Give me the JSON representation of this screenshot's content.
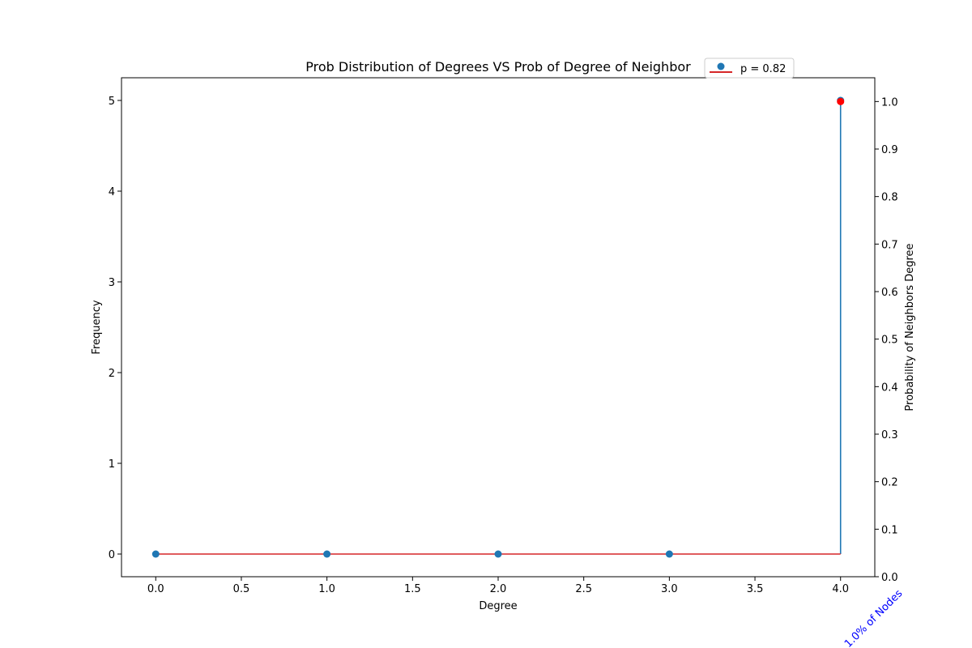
{
  "chart_data": {
    "type": "stem",
    "title": "Prob Distribution of Degrees VS Prob of Degree of Neighbor",
    "xlabel": "Degree",
    "ylabel_left": "Frequency",
    "ylabel_right": "Probability of Neighbors Degree",
    "xlim": [
      -0.2,
      4.2
    ],
    "ylim_left": [
      -0.25,
      5.25
    ],
    "ylim_right": [
      0,
      1.05
    ],
    "x_ticks": [
      "0.0",
      "0.5",
      "1.0",
      "1.5",
      "2.0",
      "2.5",
      "3.0",
      "3.5",
      "4.0"
    ],
    "x_tick_values": [
      0,
      0.5,
      1,
      1.5,
      2,
      2.5,
      3,
      3.5,
      4
    ],
    "y_left_ticks": [
      "0",
      "1",
      "2",
      "3",
      "4",
      "5"
    ],
    "y_left_tick_values": [
      0,
      1,
      2,
      3,
      4,
      5
    ],
    "y_right_ticks": [
      "0.0",
      "0.1",
      "0.2",
      "0.3",
      "0.4",
      "0.5",
      "0.6",
      "0.7",
      "0.8",
      "0.9",
      "1.0"
    ],
    "y_right_tick_values": [
      0,
      0.1,
      0.2,
      0.3,
      0.4,
      0.5,
      0.6,
      0.7,
      0.8,
      0.9,
      1.0
    ],
    "series": [
      {
        "name": "p = 0.82",
        "axis": "left",
        "style": "stem",
        "x": [
          0,
          1,
          2,
          3,
          4
        ],
        "y": [
          0,
          0,
          0,
          0,
          5
        ],
        "color": "#1f77b4",
        "baseline_color": "#d62728"
      },
      {
        "axis": "right",
        "style": "points",
        "x": [
          4
        ],
        "y": [
          1.0
        ],
        "color": "#ff0000"
      }
    ],
    "annotation": {
      "text": "1.0% of Nodes",
      "x": 4,
      "color": "#0000ff"
    },
    "legend": {
      "location": "top-right"
    },
    "grid": false
  }
}
